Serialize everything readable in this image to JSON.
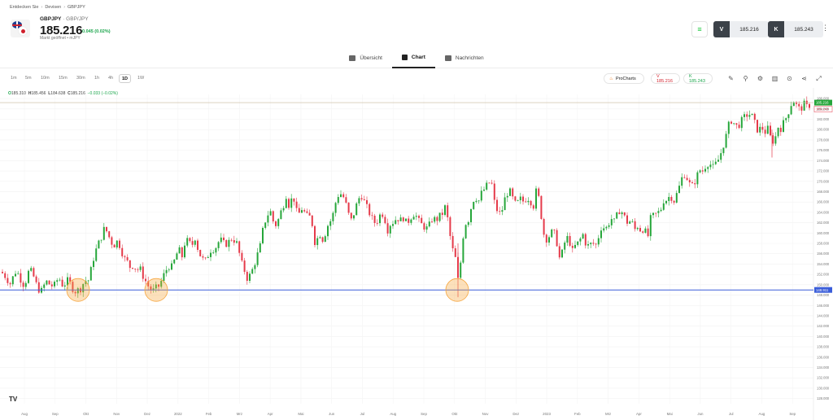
{
  "breadcrumb": {
    "items": [
      "Entdecken Sie",
      "Devisen",
      "GBPJPY"
    ]
  },
  "instrument": {
    "symbol": "GBPJPY",
    "pair": "GBP/JPY",
    "price": "185.216",
    "change": "0.045 (0.02%)",
    "status": "Markt geöffnet",
    "source": "mJPY"
  },
  "trade": {
    "sell_label": "V",
    "sell_price": "185.216",
    "buy_label": "K",
    "buy_price": "185.243"
  },
  "tabs": [
    {
      "label": "Übersicht",
      "icon": "grid-icon"
    },
    {
      "label": "Chart",
      "icon": "candles-icon"
    },
    {
      "label": "Nachrichten",
      "icon": "news-icon"
    }
  ],
  "timeframes": [
    "1m",
    "5m",
    "10m",
    "15m",
    "30m",
    "1h",
    "4h",
    "1D",
    "1W"
  ],
  "active_timeframe": "1D",
  "toolbar": {
    "prochart_label": "ProCharts",
    "sell_pill": "V 185.216",
    "buy_pill": "K 185.243",
    "icons": [
      "pen-icon",
      "indicators-icon",
      "settings-icon",
      "chart-type-icon",
      "compare-icon",
      "share-icon",
      "fullscreen-icon"
    ]
  },
  "ohlc": {
    "o_label": "O",
    "o": "185.310",
    "h_label": "H",
    "h": "185.456",
    "l_label": "L",
    "l": "184.638",
    "c_label": "C",
    "c": "185.216",
    "change": "−0.033 (−0.02%)"
  },
  "tradingview_logo": "TV",
  "chart_data": {
    "type": "candlestick",
    "y_ticks": [
      "186.000",
      "184.000",
      "182.000",
      "180.000",
      "178.000",
      "176.000",
      "174.000",
      "172.000",
      "170.000",
      "168.000",
      "166.000",
      "164.000",
      "162.000",
      "160.000",
      "158.000",
      "156.000",
      "154.000",
      "152.000",
      "150.000",
      "148.000",
      "146.000",
      "144.000",
      "142.000",
      "140.000",
      "138.000",
      "136.000",
      "134.000",
      "132.000",
      "130.000",
      "128.000"
    ],
    "ylim": [
      127.0,
      186.8
    ],
    "x_labels": [
      "Aug",
      "Sep",
      "Okt",
      "Nov",
      "Dez",
      "2022",
      "Feb",
      "Mrz",
      "Apr",
      "Mai",
      "Jun",
      "Jul",
      "Aug",
      "Sep",
      "Okt",
      "Nov",
      "Dez",
      "2023",
      "Feb",
      "Mrz",
      "Apr",
      "Mai",
      "Jun",
      "Jul",
      "Aug",
      "Sep"
    ],
    "close_path": [
      [
        0,
        153.0
      ],
      [
        4,
        152.0
      ],
      [
        8,
        151.4
      ],
      [
        12,
        150.0
      ],
      [
        16,
        151.5
      ],
      [
        20,
        152.8
      ],
      [
        24,
        151.6
      ],
      [
        28,
        150.0
      ],
      [
        32,
        150.8
      ],
      [
        36,
        153.0
      ],
      [
        40,
        152.2
      ],
      [
        44,
        150.3
      ],
      [
        48,
        149.0
      ],
      [
        52,
        148.8
      ],
      [
        56,
        150.8
      ],
      [
        60,
        150.2
      ],
      [
        64,
        149.8
      ],
      [
        68,
        150.0
      ],
      [
        72,
        151.6
      ],
      [
        76,
        150.0
      ],
      [
        80,
        150.2
      ],
      [
        84,
        151.0
      ],
      [
        88,
        149.6
      ],
      [
        92,
        148.7
      ],
      [
        96,
        149.0
      ],
      [
        100,
        149.3
      ],
      [
        104,
        151.0
      ],
      [
        108,
        150.5
      ],
      [
        112,
        153.0
      ],
      [
        116,
        155.8
      ],
      [
        120,
        157.6
      ],
      [
        124,
        159.0
      ],
      [
        128,
        160.8
      ],
      [
        132,
        160.2
      ],
      [
        136,
        158.4
      ],
      [
        140,
        157.6
      ],
      [
        144,
        158.4
      ],
      [
        148,
        157.4
      ],
      [
        152,
        155.2
      ],
      [
        156,
        154.6
      ],
      [
        160,
        153.4
      ],
      [
        164,
        153.8
      ],
      [
        168,
        152.8
      ],
      [
        172,
        153.2
      ],
      [
        176,
        151.6
      ],
      [
        180,
        150.4
      ],
      [
        184,
        149.2
      ],
      [
        188,
        148.8
      ],
      [
        192,
        149.4
      ],
      [
        196,
        149.8
      ],
      [
        200,
        151.4
      ],
      [
        204,
        152.8
      ],
      [
        208,
        153.6
      ],
      [
        212,
        153.4
      ],
      [
        216,
        155.6
      ],
      [
        220,
        156.8
      ],
      [
        224,
        155.4
      ],
      [
        228,
        158.8
      ],
      [
        232,
        158.2
      ],
      [
        236,
        157.6
      ],
      [
        240,
        159.2
      ],
      [
        244,
        156.4
      ],
      [
        248,
        155.2
      ],
      [
        252,
        154.4
      ],
      [
        256,
        155.8
      ],
      [
        260,
        157.0
      ],
      [
        264,
        156.8
      ],
      [
        268,
        158.2
      ],
      [
        272,
        158.6
      ],
      [
        276,
        157.8
      ],
      [
        280,
        158.0
      ],
      [
        284,
        159.0
      ],
      [
        288,
        158.6
      ],
      [
        292,
        157.8
      ],
      [
        296,
        154.6
      ],
      [
        300,
        153.0
      ],
      [
        304,
        151.2
      ],
      [
        308,
        152.0
      ],
      [
        312,
        153.6
      ],
      [
        316,
        155.6
      ],
      [
        320,
        157.6
      ],
      [
        324,
        161.4
      ],
      [
        328,
        163.2
      ],
      [
        332,
        164.4
      ],
      [
        336,
        162.2
      ],
      [
        340,
        161.4
      ],
      [
        344,
        163.6
      ],
      [
        348,
        165.2
      ],
      [
        352,
        167.4
      ],
      [
        356,
        164.8
      ],
      [
        360,
        167.8
      ],
      [
        364,
        164.2
      ],
      [
        368,
        163.8
      ],
      [
        372,
        165.0
      ],
      [
        376,
        163.2
      ],
      [
        380,
        163.4
      ],
      [
        384,
        161.6
      ],
      [
        388,
        157.2
      ],
      [
        392,
        160.4
      ],
      [
        396,
        158.6
      ],
      [
        400,
        160.0
      ],
      [
        404,
        162.0
      ],
      [
        408,
        162.6
      ],
      [
        412,
        165.6
      ],
      [
        416,
        167.4
      ],
      [
        420,
        167.6
      ],
      [
        424,
        166.4
      ],
      [
        428,
        163.8
      ],
      [
        432,
        162.4
      ],
      [
        436,
        164.2
      ],
      [
        440,
        166.4
      ],
      [
        444,
        167.4
      ],
      [
        448,
        166.0
      ],
      [
        452,
        164.6
      ],
      [
        456,
        163.2
      ],
      [
        460,
        162.0
      ],
      [
        464,
        162.4
      ],
      [
        468,
        163.8
      ],
      [
        472,
        163.6
      ],
      [
        476,
        160.4
      ],
      [
        480,
        161.8
      ],
      [
        484,
        162.2
      ],
      [
        488,
        163.0
      ],
      [
        492,
        162.4
      ],
      [
        496,
        163.0
      ],
      [
        500,
        161.8
      ],
      [
        504,
        162.8
      ],
      [
        508,
        163.8
      ],
      [
        512,
        163.2
      ],
      [
        516,
        162.0
      ],
      [
        520,
        161.4
      ],
      [
        524,
        160.8
      ],
      [
        528,
        161.6
      ],
      [
        532,
        163.0
      ],
      [
        536,
        162.4
      ],
      [
        540,
        163.2
      ],
      [
        544,
        163.8
      ],
      [
        548,
        165.4
      ],
      [
        552,
        160.6
      ],
      [
        556,
        157.0
      ],
      [
        560,
        155.0
      ],
      [
        564,
        149.6
      ],
      [
        568,
        158.2
      ],
      [
        572,
        161.8
      ],
      [
        576,
        162.6
      ],
      [
        580,
        165.6
      ],
      [
        584,
        167.2
      ],
      [
        588,
        166.0
      ],
      [
        592,
        167.8
      ],
      [
        596,
        168.6
      ],
      [
        600,
        169.6
      ],
      [
        604,
        170.0
      ],
      [
        608,
        165.8
      ],
      [
        612,
        164.0
      ],
      [
        616,
        163.6
      ],
      [
        620,
        166.4
      ],
      [
        624,
        167.8
      ],
      [
        628,
        168.0
      ],
      [
        632,
        165.6
      ],
      [
        636,
        165.8
      ],
      [
        640,
        166.6
      ],
      [
        644,
        166.0
      ],
      [
        648,
        167.0
      ],
      [
        652,
        166.2
      ],
      [
        656,
        165.2
      ],
      [
        660,
        169.0
      ],
      [
        664,
        165.0
      ],
      [
        668,
        160.0
      ],
      [
        672,
        158.8
      ],
      [
        676,
        159.6
      ],
      [
        680,
        160.6
      ],
      [
        684,
        158.6
      ],
      [
        688,
        155.0
      ],
      [
        692,
        156.6
      ],
      [
        696,
        159.4
      ],
      [
        700,
        158.4
      ],
      [
        704,
        156.4
      ],
      [
        708,
        157.8
      ],
      [
        712,
        158.2
      ],
      [
        716,
        160.0
      ],
      [
        720,
        158.0
      ],
      [
        724,
        157.4
      ],
      [
        728,
        158.2
      ],
      [
        732,
        157.4
      ],
      [
        736,
        159.4
      ],
      [
        740,
        161.6
      ],
      [
        744,
        160.6
      ],
      [
        748,
        161.8
      ],
      [
        752,
        162.8
      ],
      [
        756,
        162.0
      ],
      [
        760,
        164.4
      ],
      [
        764,
        164.2
      ],
      [
        768,
        163.0
      ],
      [
        772,
        161.8
      ],
      [
        776,
        162.6
      ],
      [
        780,
        160.6
      ],
      [
        784,
        161.4
      ],
      [
        788,
        160.4
      ],
      [
        792,
        161.0
      ],
      [
        796,
        158.8
      ],
      [
        800,
        163.0
      ],
      [
        804,
        163.4
      ],
      [
        808,
        163.8
      ],
      [
        812,
        164.4
      ],
      [
        816,
        166.4
      ],
      [
        820,
        166.4
      ],
      [
        824,
        167.4
      ],
      [
        828,
        166.0
      ],
      [
        832,
        167.6
      ],
      [
        836,
        169.4
      ],
      [
        840,
        171.6
      ],
      [
        844,
        170.8
      ],
      [
        848,
        169.4
      ],
      [
        852,
        169.0
      ],
      [
        856,
        170.8
      ],
      [
        860,
        172.2
      ],
      [
        864,
        172.0
      ],
      [
        868,
        173.2
      ],
      [
        872,
        173.6
      ],
      [
        876,
        172.6
      ],
      [
        880,
        173.4
      ],
      [
        884,
        174.4
      ],
      [
        888,
        176.4
      ],
      [
        892,
        178.4
      ],
      [
        896,
        181.0
      ],
      [
        900,
        182.0
      ],
      [
        904,
        180.6
      ],
      [
        908,
        180.8
      ],
      [
        912,
        181.8
      ],
      [
        916,
        182.6
      ],
      [
        920,
        183.0
      ],
      [
        924,
        182.8
      ],
      [
        928,
        181.2
      ],
      [
        932,
        179.6
      ],
      [
        936,
        180.6
      ],
      [
        940,
        179.4
      ],
      [
        944,
        180.2
      ],
      [
        948,
        178.0
      ],
      [
        952,
        177.6
      ],
      [
        956,
        180.6
      ],
      [
        960,
        180.2
      ],
      [
        964,
        181.6
      ],
      [
        968,
        182.8
      ],
      [
        972,
        184.8
      ],
      [
        976,
        185.6
      ],
      [
        980,
        184.4
      ],
      [
        984,
        183.8
      ],
      [
        988,
        185.0
      ],
      [
        992,
        184.4
      ],
      [
        996,
        184.8
      ],
      [
        1000,
        185.2
      ]
    ],
    "reference_line": 149.0,
    "current_price_label": "185.216",
    "buy_price_label": "185.243",
    "support_label": "148.911",
    "highlight_points": [
      {
        "x_index": 96,
        "value": 149.0
      },
      {
        "x_index": 192,
        "value": 149.0
      },
      {
        "x_index": 562,
        "value": 149.0
      }
    ],
    "colors": {
      "up": "#26a63a",
      "down": "#e53a4a",
      "support": "#3a5dd9",
      "highlight": "#f6a53c",
      "price_line": "#c8b79a"
    }
  }
}
